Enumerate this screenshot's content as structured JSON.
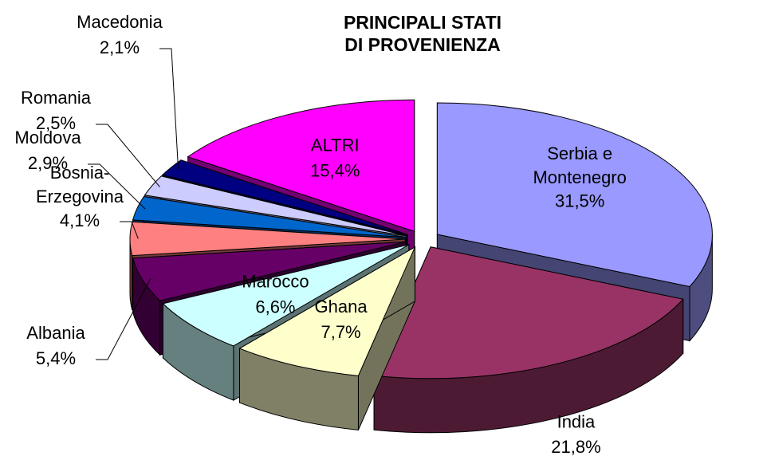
{
  "chart_data": {
    "type": "pie3d",
    "title": "PRINCIPALI STATI  DI PROVENIENZA",
    "categories": [
      "Serbia e Montenegro",
      "India",
      "Ghana",
      "Marocco",
      "Albania",
      "Bosnia-Erzegovina",
      "Moldova",
      "Romania",
      "Macedonia",
      "ALTRI"
    ],
    "values": [
      31.5,
      21.8,
      7.7,
      6.6,
      5.4,
      4.1,
      2.9,
      2.5,
      2.1,
      15.4
    ],
    "value_labels": [
      "31,5%",
      "21,8%",
      "7,7%",
      "6,6%",
      "5,4%",
      "4,1%",
      "2,9%",
      "2,5%",
      "2,1%",
      "15,4%"
    ],
    "colors": [
      "#9999ff",
      "#993366",
      "#ffffcc",
      "#ccffff",
      "#660066",
      "#ff8080",
      "#0066cc",
      "#ccccff",
      "#000080",
      "#ff00ff"
    ]
  }
}
